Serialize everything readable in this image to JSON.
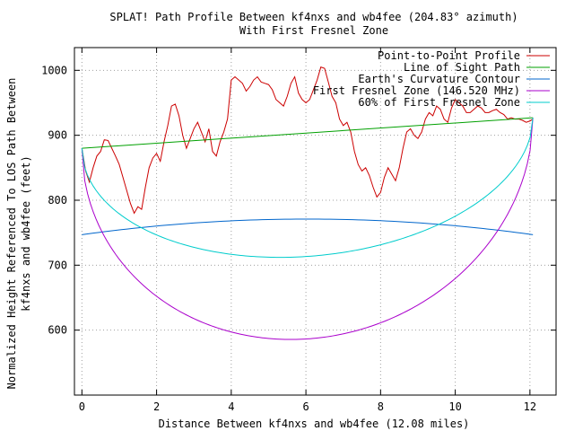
{
  "chart_data": {
    "type": "line",
    "title": "SPLAT! Path Profile Between kf4nxs and wb4fee (204.83° azimuth)",
    "subtitle": "With First Fresnel Zone",
    "xlabel": "Distance Between kf4nxs and wb4fee (12.08 miles)",
    "ylabel_line1": "Normalized Height Referenced To LOS Path Between",
    "ylabel_line2": "kf4nxs and wb4fee (feet)",
    "xlim": [
      -0.2,
      12.7
    ],
    "ylim": [
      500,
      1035
    ],
    "x_ticks": [
      0,
      2,
      4,
      6,
      8,
      10,
      12
    ],
    "x_tick_labels": [
      "0",
      "2",
      "4",
      "6",
      "8",
      "10",
      "12"
    ],
    "y_ticks": [
      600,
      700,
      800,
      900,
      1000
    ],
    "y_tick_labels": [
      "600",
      "700",
      "800",
      "900",
      "1000"
    ],
    "grid": true,
    "legend_position": "top-right",
    "series": [
      {
        "name": "Point-to-Point Profile",
        "color": "#cc0000",
        "x": [
          0,
          0.1,
          0.2,
          0.3,
          0.4,
          0.5,
          0.6,
          0.7,
          0.8,
          0.9,
          1.0,
          1.1,
          1.2,
          1.3,
          1.4,
          1.5,
          1.6,
          1.7,
          1.8,
          1.9,
          2.0,
          2.1,
          2.2,
          2.3,
          2.4,
          2.5,
          2.6,
          2.7,
          2.8,
          2.9,
          3.0,
          3.1,
          3.2,
          3.3,
          3.4,
          3.5,
          3.6,
          3.7,
          3.8,
          3.9,
          4.0,
          4.1,
          4.2,
          4.3,
          4.4,
          4.5,
          4.6,
          4.7,
          4.8,
          4.9,
          5.0,
          5.1,
          5.2,
          5.3,
          5.4,
          5.5,
          5.6,
          5.7,
          5.8,
          5.9,
          6.0,
          6.1,
          6.2,
          6.3,
          6.4,
          6.5,
          6.6,
          6.7,
          6.8,
          6.9,
          7.0,
          7.1,
          7.2,
          7.3,
          7.4,
          7.5,
          7.6,
          7.7,
          7.8,
          7.9,
          8.0,
          8.1,
          8.2,
          8.3,
          8.4,
          8.5,
          8.6,
          8.7,
          8.8,
          8.9,
          9.0,
          9.1,
          9.2,
          9.3,
          9.4,
          9.5,
          9.6,
          9.7,
          9.8,
          9.9,
          10.0,
          10.1,
          10.2,
          10.3,
          10.4,
          10.5,
          10.6,
          10.7,
          10.8,
          10.9,
          11.0,
          11.1,
          11.2,
          11.3,
          11.4,
          11.5,
          11.6,
          11.7,
          11.8,
          11.9,
          12.0,
          12.08
        ],
        "values": [
          880,
          845,
          828,
          850,
          868,
          875,
          893,
          892,
          880,
          868,
          855,
          835,
          815,
          795,
          780,
          790,
          786,
          820,
          850,
          865,
          872,
          860,
          890,
          915,
          945,
          948,
          930,
          900,
          880,
          895,
          910,
          920,
          905,
          890,
          910,
          875,
          868,
          890,
          905,
          925,
          985,
          990,
          985,
          980,
          968,
          975,
          985,
          990,
          982,
          980,
          978,
          970,
          955,
          950,
          945,
          960,
          980,
          990,
          965,
          955,
          950,
          955,
          970,
          985,
          1005,
          1003,
          982,
          960,
          950,
          925,
          915,
          920,
          905,
          875,
          855,
          845,
          850,
          838,
          820,
          805,
          812,
          835,
          850,
          840,
          830,
          850,
          880,
          905,
          910,
          900,
          895,
          905,
          925,
          935,
          930,
          945,
          940,
          925,
          920,
          942,
          955,
          950,
          945,
          935,
          935,
          940,
          945,
          942,
          935,
          935,
          938,
          940,
          935,
          932,
          925,
          927,
          925,
          925,
          923,
          920,
          922,
          925
        ]
      },
      {
        "name": "Line of Sight Path",
        "color": "#00a000",
        "x": [
          0,
          12.08
        ],
        "values": [
          880,
          927
        ]
      },
      {
        "name": "Earth's Curvature Contour",
        "color": "#0066cc",
        "curve": "arc",
        "endpoints": [
          747,
          747
        ],
        "peak": 771
      },
      {
        "name": "First Fresnel Zone (146.520 MHz)",
        "color": "#aa00cc",
        "curve": "fresnel",
        "depth": 317
      },
      {
        "name": "60% of First Fresnel Zone",
        "color": "#00cccc",
        "curve": "fresnel",
        "depth": 190
      }
    ]
  }
}
